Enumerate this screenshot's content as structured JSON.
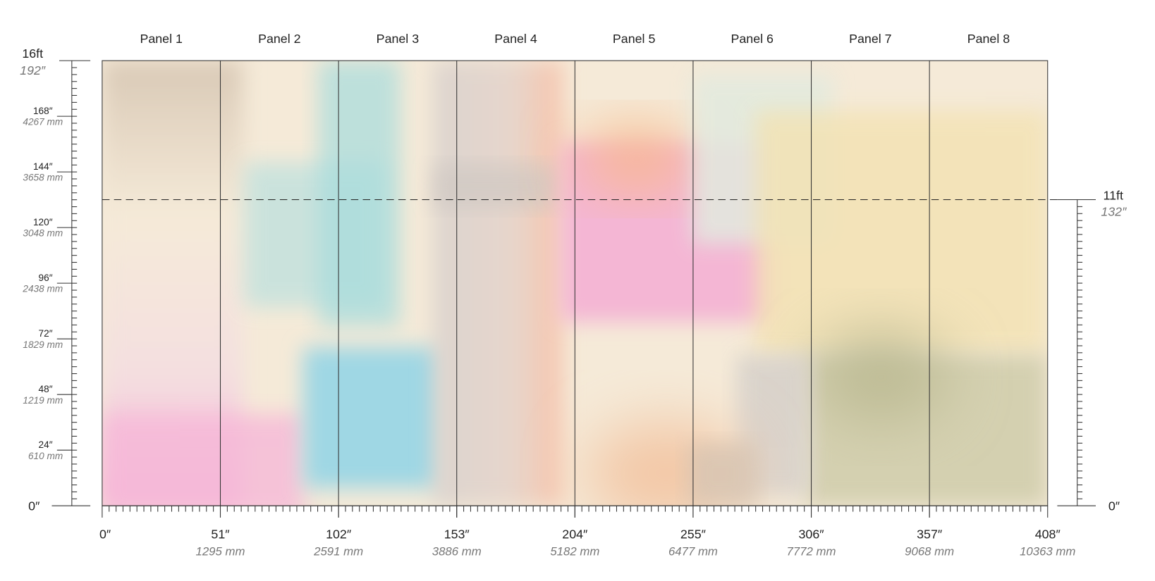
{
  "panels": [
    "Panel 1",
    "Panel 2",
    "Panel 3",
    "Panel 4",
    "Panel 5",
    "Panel 6",
    "Panel 7",
    "Panel 8"
  ],
  "left_ruler": {
    "top_ft": "16ft",
    "top_in": "192″",
    "marks": [
      {
        "inch": "168″",
        "mm": "4267 mm"
      },
      {
        "inch": "144″",
        "mm": "3658 mm"
      },
      {
        "inch": "120″",
        "mm": "3048 mm"
      },
      {
        "inch": "96″",
        "mm": "2438 mm"
      },
      {
        "inch": "72″",
        "mm": "1829 mm"
      },
      {
        "inch": "48″",
        "mm": "1219 mm"
      },
      {
        "inch": "24″",
        "mm": "610 mm"
      }
    ],
    "zero": "0″"
  },
  "right_ruler": {
    "ft": "11ft",
    "inch": "132″",
    "zero": "0″"
  },
  "bottom_ruler": {
    "marks": [
      {
        "inch": "0″"
      },
      {
        "inch": "51″",
        "mm": "1295 mm"
      },
      {
        "inch": "102″",
        "mm": "2591 mm"
      },
      {
        "inch": "153″",
        "mm": "3886 mm"
      },
      {
        "inch": "204″",
        "mm": "5182 mm"
      },
      {
        "inch": "255″",
        "mm": "6477 mm"
      },
      {
        "inch": "306″",
        "mm": "7772 mm"
      },
      {
        "inch": "357″",
        "mm": "9068 mm"
      },
      {
        "inch": "408″",
        "mm": "10363 mm"
      }
    ]
  }
}
